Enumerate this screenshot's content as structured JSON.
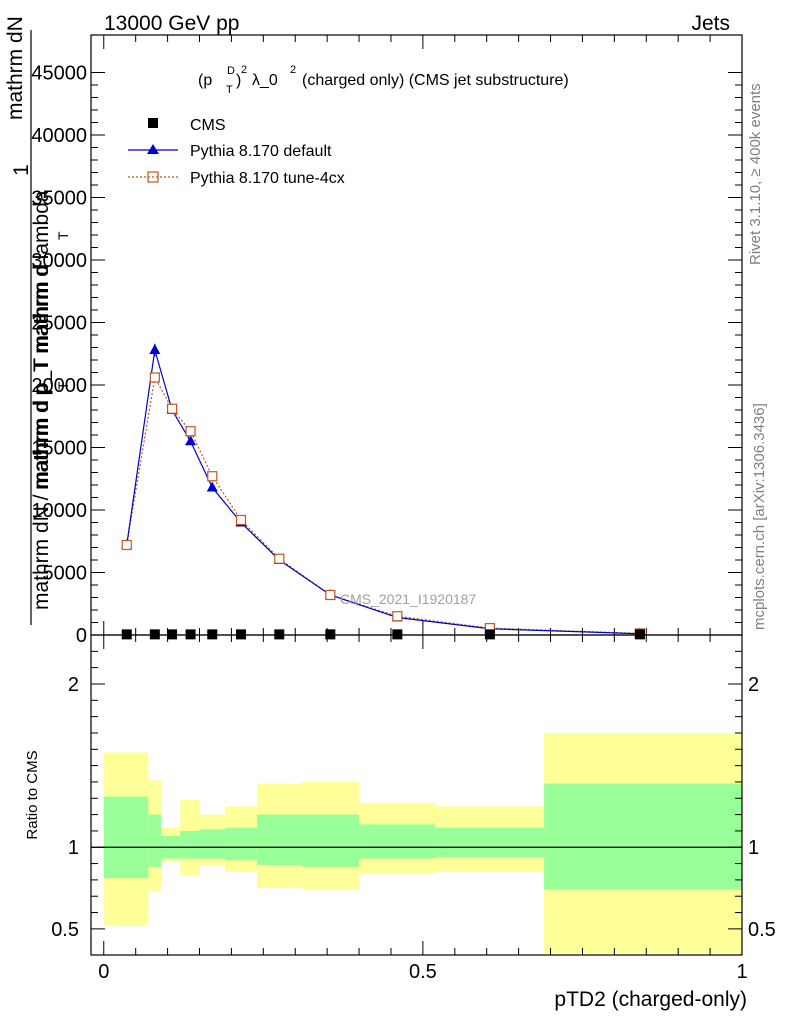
{
  "header": {
    "left": "13000 GeV pp",
    "right": "Jets"
  },
  "title": {
    "main": "λ_0",
    "suffix": "(charged only) (CMS jet substructure)",
    "p": "(p",
    "sup_d": "D",
    "sub_t": "T",
    "close": ")",
    "exp2a": "2",
    "exp2b": "2"
  },
  "side_labels": {
    "rivet": "Rivet 3.1.10, ≥ 400k events",
    "mcplots": "mcplots.cern.ch [arXiv:1306.3436]"
  },
  "watermark": "CMS_2021_I1920187",
  "ylabel": {
    "one": "1",
    "num": "mathrm dN",
    "num2": "mathrm d p_T mathrm d lambda",
    "sub_t": "T",
    "den": "mathrm dN / mathrm d p_T mathrm d",
    "sub_t2": "T"
  },
  "ratio_label": "Ratio to CMS",
  "xlabel": "pTD2 (charged-only)",
  "legend": [
    {
      "label": "CMS",
      "color": "#000000"
    },
    {
      "label": "Pythia 8.170 default",
      "color": "#0000cc"
    },
    {
      "label": "Pythia 8.170 tune-4cx",
      "color": "#c0561c"
    }
  ],
  "chart_data": [
    {
      "type": "line",
      "xlim": [
        -0.02,
        1.0
      ],
      "ylim": [
        0,
        48000
      ],
      "y_ticks": [
        0,
        5000,
        10000,
        15000,
        20000,
        25000,
        30000,
        35000,
        40000,
        45000
      ],
      "y_tick_labels": [
        "0",
        "5000",
        "10000",
        "15000",
        "20000",
        "25000",
        "30000",
        "35000",
        "40000",
        "45000"
      ],
      "series": [
        {
          "name": "CMS",
          "x": [
            0.036,
            0.08,
            0.107,
            0.136,
            0.17,
            0.215,
            0.275,
            0.355,
            0.46,
            0.605,
            0.84
          ],
          "y": [
            50,
            50,
            50,
            50,
            50,
            50,
            50,
            50,
            50,
            50,
            50
          ]
        },
        {
          "name": "Pythia 8.170 default",
          "x": [
            0.036,
            0.08,
            0.107,
            0.136,
            0.17,
            0.215,
            0.275,
            0.355,
            0.46,
            0.605,
            0.84
          ],
          "y": [
            7200,
            22800,
            18000,
            15500,
            11800,
            9000,
            6000,
            3200,
            1400,
            500,
            100
          ],
          "yerr": [
            300,
            500,
            300,
            300,
            300,
            200,
            150,
            100,
            80,
            50,
            30
          ]
        },
        {
          "name": "Pythia 8.170 tune-4cx",
          "x": [
            0.036,
            0.08,
            0.107,
            0.136,
            0.17,
            0.215,
            0.275,
            0.355,
            0.46,
            0.605,
            0.84
          ],
          "y": [
            7200,
            20600,
            18100,
            16300,
            12700,
            9200,
            6100,
            3200,
            1500,
            550,
            120
          ]
        }
      ]
    },
    {
      "type": "area",
      "title": "Ratio to CMS",
      "xlabel": "pTD2 (charged-only)",
      "xlim": [
        -0.02,
        1.0
      ],
      "ylim": [
        0.34,
        2.3
      ],
      "x_ticks": [
        0,
        0.5,
        1
      ],
      "x_tick_labels": [
        "0",
        "0.5",
        "1"
      ],
      "y_ticks": [
        0.5,
        1,
        2
      ],
      "y_tick_labels": [
        "0.5",
        "1",
        "2"
      ],
      "bins": [
        {
          "x0": 0.0,
          "x1": 0.07,
          "g_lo": 0.81,
          "g_hi": 1.31,
          "y_lo": 0.52,
          "y_hi": 1.58
        },
        {
          "x0": 0.07,
          "x1": 0.09,
          "g_lo": 0.88,
          "g_hi": 1.2,
          "y_lo": 0.73,
          "y_hi": 1.41
        },
        {
          "x0": 0.09,
          "x1": 0.12,
          "g_lo": 0.93,
          "g_hi": 1.07,
          "y_lo": 0.91,
          "y_hi": 1.12
        },
        {
          "x0": 0.12,
          "x1": 0.15,
          "g_lo": 0.93,
          "g_hi": 1.1,
          "y_lo": 0.83,
          "y_hi": 1.29
        },
        {
          "x0": 0.15,
          "x1": 0.19,
          "g_lo": 0.93,
          "g_hi": 1.11,
          "y_lo": 0.89,
          "y_hi": 1.2
        },
        {
          "x0": 0.19,
          "x1": 0.24,
          "g_lo": 0.92,
          "g_hi": 1.12,
          "y_lo": 0.85,
          "y_hi": 1.25
        },
        {
          "x0": 0.24,
          "x1": 0.31,
          "g_lo": 0.89,
          "g_hi": 1.2,
          "y_lo": 0.75,
          "y_hi": 1.39
        },
        {
          "x0": 0.31,
          "x1": 0.4,
          "g_lo": 0.88,
          "g_hi": 1.2,
          "y_lo": 0.74,
          "y_hi": 1.4
        },
        {
          "x0": 0.4,
          "x1": 0.52,
          "g_lo": 0.93,
          "g_hi": 1.14,
          "y_lo": 0.84,
          "y_hi": 1.27
        },
        {
          "x0": 0.52,
          "x1": 0.69,
          "g_lo": 0.94,
          "g_hi": 1.12,
          "y_lo": 0.85,
          "y_hi": 1.25
        },
        {
          "x0": 0.69,
          "x1": 1.0,
          "g_lo": 0.74,
          "g_hi": 1.39,
          "y_lo": 0.35,
          "y_hi": 1.7
        }
      ],
      "reference": 1
    }
  ]
}
